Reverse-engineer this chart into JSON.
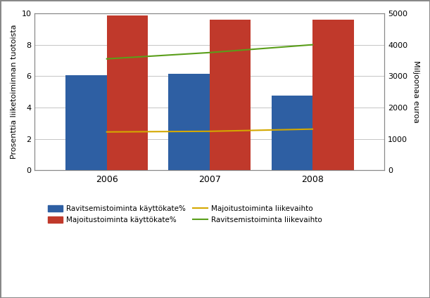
{
  "years": [
    2006,
    2007,
    2008
  ],
  "ravitsemisto_kate": [
    6.05,
    6.15,
    4.75
  ],
  "majoitustoiminta_kate": [
    9.85,
    9.6,
    9.6
  ],
  "majoitustoiminta_liikevaihto": [
    1220,
    1240,
    1310
  ],
  "ravitsemistoiminta_liikevaihto": [
    3550,
    3750,
    4000
  ],
  "bar_color_ravitsemisto": "#2E5FA3",
  "bar_color_majoitus": "#C0392B",
  "line_color_majoitus": "#D4A800",
  "line_color_ravitsemisto": "#5A9E1A",
  "ylabel_left": "Prosenttia liiketoiminnan tuotoista",
  "ylabel_right": "Miljoonaa euroa",
  "ylim_left": [
    0,
    10
  ],
  "ylim_right": [
    0,
    5000
  ],
  "yticks_left": [
    0,
    2,
    4,
    6,
    8,
    10
  ],
  "yticks_right": [
    0,
    1000,
    2000,
    3000,
    4000,
    5000
  ],
  "legend_labels": [
    "Ravitsemistoiminta käyttökate%",
    "Majoitustoiminta käyttökate%",
    "Majoitustoiminta liikevaihto",
    "Ravitsemistoiminta liikevaihto"
  ],
  "bar_width": 0.4,
  "background_color": "#FFFFFF",
  "grid_color": "#BBBBBB"
}
